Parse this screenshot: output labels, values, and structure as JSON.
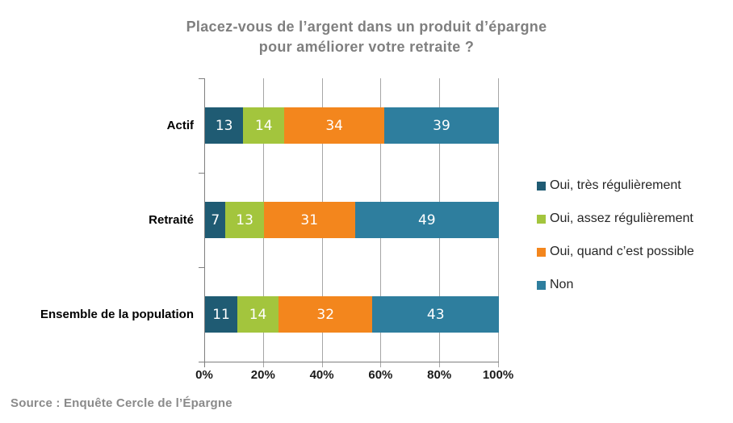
{
  "chart_data": {
    "type": "bar",
    "variant": "horizontal-stacked",
    "title": "Placez-vous de l’argent dans un produit d’épargne pour améliorer votre retraite ?",
    "title_lines": [
      "Placez-vous de l’argent dans un produit d’épargne",
      "pour améliorer votre retraite ?"
    ],
    "categories": [
      "Actif",
      "Retraité",
      "Ensemble de la population"
    ],
    "series": [
      {
        "name": "Oui, très régulièrement",
        "color": "#1F5B73",
        "values": [
          13,
          7,
          11
        ]
      },
      {
        "name": "Oui, assez régulièrement",
        "color": "#A3C53D",
        "values": [
          14,
          13,
          14
        ]
      },
      {
        "name": "Oui, quand c’est possible",
        "color": "#F3861D",
        "values": [
          34,
          31,
          32
        ]
      },
      {
        "name": "Non",
        "color": "#2E7E9E",
        "values": [
          39,
          49,
          43
        ]
      }
    ],
    "x_ticks": [
      "0%",
      "20%",
      "40%",
      "60%",
      "80%",
      "100%"
    ],
    "xlim": [
      0,
      100
    ],
    "grid": true,
    "legend_position": "right",
    "value_label_color": "#FFFFFF"
  },
  "source": "Source : Enquête Cercle de l’Épargne",
  "styles": {
    "title_color": "#7F7F7F",
    "axis_color": "#7F7F7F",
    "gridline_color": "#A6A6A6",
    "legend_text_color": "#262626",
    "source_color": "#8A8A8A",
    "background": "#FFFFFF"
  }
}
